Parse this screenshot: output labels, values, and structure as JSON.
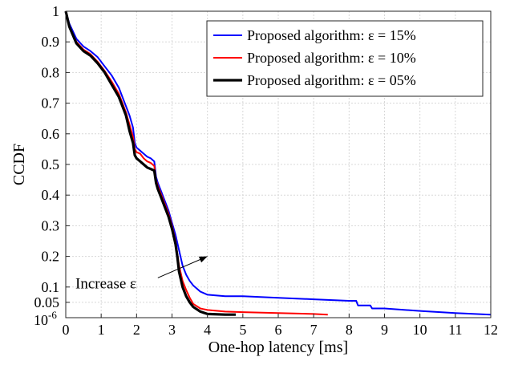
{
  "chart_data": {
    "type": "line",
    "xlabel": "One-hop latency [ms]",
    "ylabel": "CCDF",
    "xlim": [
      0,
      12
    ],
    "ylim": [
      0,
      1
    ],
    "x_ticks": [
      "0",
      "1",
      "2",
      "3",
      "4",
      "5",
      "6",
      "7",
      "8",
      "9",
      "10",
      "11",
      "12"
    ],
    "y_ticks": [
      {
        "label": "10",
        "exp": "-6",
        "pos": 0.0
      },
      {
        "label": "0.05",
        "pos": 0.05
      },
      {
        "label": "0.1",
        "pos": 0.1
      },
      {
        "label": "0.2",
        "pos": 0.2
      },
      {
        "label": "0.3",
        "pos": 0.3
      },
      {
        "label": "0.4",
        "pos": 0.4
      },
      {
        "label": "0.5",
        "pos": 0.5
      },
      {
        "label": "0.6",
        "pos": 0.6
      },
      {
        "label": "0.7",
        "pos": 0.7
      },
      {
        "label": "0.8",
        "pos": 0.8
      },
      {
        "label": "0.9",
        "pos": 0.9
      },
      {
        "label": "1",
        "pos": 1.0
      }
    ],
    "grid": true,
    "legend_position": "top-right",
    "annotation": {
      "text": "Increase ε",
      "arrow_from": [
        2.6,
        0.13
      ],
      "arrow_to": [
        4.0,
        0.2
      ]
    },
    "series": [
      {
        "name": "Proposed algorithm: ε = 15%",
        "color": "#0000ff",
        "x": [
          0.0,
          0.1,
          0.3,
          0.5,
          0.7,
          0.9,
          1.1,
          1.3,
          1.5,
          1.6,
          1.7,
          1.8,
          1.9,
          1.95,
          2.0,
          2.1,
          2.2,
          2.3,
          2.4,
          2.5,
          2.55,
          2.6,
          2.7,
          2.8,
          2.9,
          3.0,
          3.1,
          3.2,
          3.3,
          3.4,
          3.5,
          3.6,
          3.8,
          4.0,
          4.5,
          5.0,
          6.0,
          7.0,
          8.0,
          8.2,
          8.25,
          8.6,
          8.65,
          9.0,
          10.0,
          11.0,
          12.0
        ],
        "y": [
          1.0,
          0.96,
          0.91,
          0.885,
          0.87,
          0.85,
          0.82,
          0.79,
          0.75,
          0.72,
          0.69,
          0.66,
          0.62,
          0.57,
          0.555,
          0.545,
          0.535,
          0.525,
          0.52,
          0.51,
          0.46,
          0.44,
          0.41,
          0.38,
          0.35,
          0.31,
          0.27,
          0.22,
          0.17,
          0.14,
          0.12,
          0.105,
          0.085,
          0.075,
          0.07,
          0.07,
          0.065,
          0.06,
          0.055,
          0.055,
          0.04,
          0.04,
          0.03,
          0.03,
          0.022,
          0.015,
          0.01
        ]
      },
      {
        "name": "Proposed algorithm: ε = 10%",
        "color": "#ff0000",
        "x": [
          0.0,
          0.1,
          0.3,
          0.5,
          0.7,
          0.9,
          1.1,
          1.3,
          1.5,
          1.6,
          1.7,
          1.8,
          1.9,
          1.95,
          2.0,
          2.1,
          2.2,
          2.3,
          2.4,
          2.5,
          2.55,
          2.6,
          2.7,
          2.8,
          2.9,
          3.0,
          3.1,
          3.15,
          3.2,
          3.3,
          3.4,
          3.5,
          3.6,
          3.8,
          4.0,
          4.5,
          5.0,
          6.0,
          7.0,
          7.4
        ],
        "y": [
          1.0,
          0.95,
          0.9,
          0.875,
          0.86,
          0.835,
          0.805,
          0.77,
          0.73,
          0.7,
          0.67,
          0.63,
          0.59,
          0.55,
          0.54,
          0.535,
          0.52,
          0.51,
          0.505,
          0.495,
          0.45,
          0.43,
          0.4,
          0.37,
          0.34,
          0.3,
          0.25,
          0.21,
          0.17,
          0.12,
          0.09,
          0.065,
          0.045,
          0.03,
          0.025,
          0.02,
          0.018,
          0.015,
          0.012,
          0.01
        ]
      },
      {
        "name": "Proposed algorithm: ε = 05%",
        "color": "#000000",
        "x": [
          0.0,
          0.1,
          0.3,
          0.5,
          0.7,
          0.9,
          1.1,
          1.3,
          1.5,
          1.6,
          1.7,
          1.8,
          1.9,
          1.95,
          2.0,
          2.1,
          2.2,
          2.3,
          2.4,
          2.5,
          2.55,
          2.6,
          2.7,
          2.8,
          2.9,
          3.0,
          3.1,
          3.15,
          3.2,
          3.3,
          3.4,
          3.5,
          3.6,
          3.8,
          4.0,
          4.5,
          4.8
        ],
        "y": [
          1.0,
          0.95,
          0.895,
          0.87,
          0.855,
          0.83,
          0.8,
          0.76,
          0.72,
          0.69,
          0.66,
          0.61,
          0.57,
          0.53,
          0.52,
          0.51,
          0.5,
          0.49,
          0.485,
          0.48,
          0.44,
          0.42,
          0.39,
          0.36,
          0.33,
          0.29,
          0.24,
          0.2,
          0.15,
          0.1,
          0.07,
          0.05,
          0.035,
          0.02,
          0.012,
          0.01,
          0.01
        ]
      }
    ]
  }
}
